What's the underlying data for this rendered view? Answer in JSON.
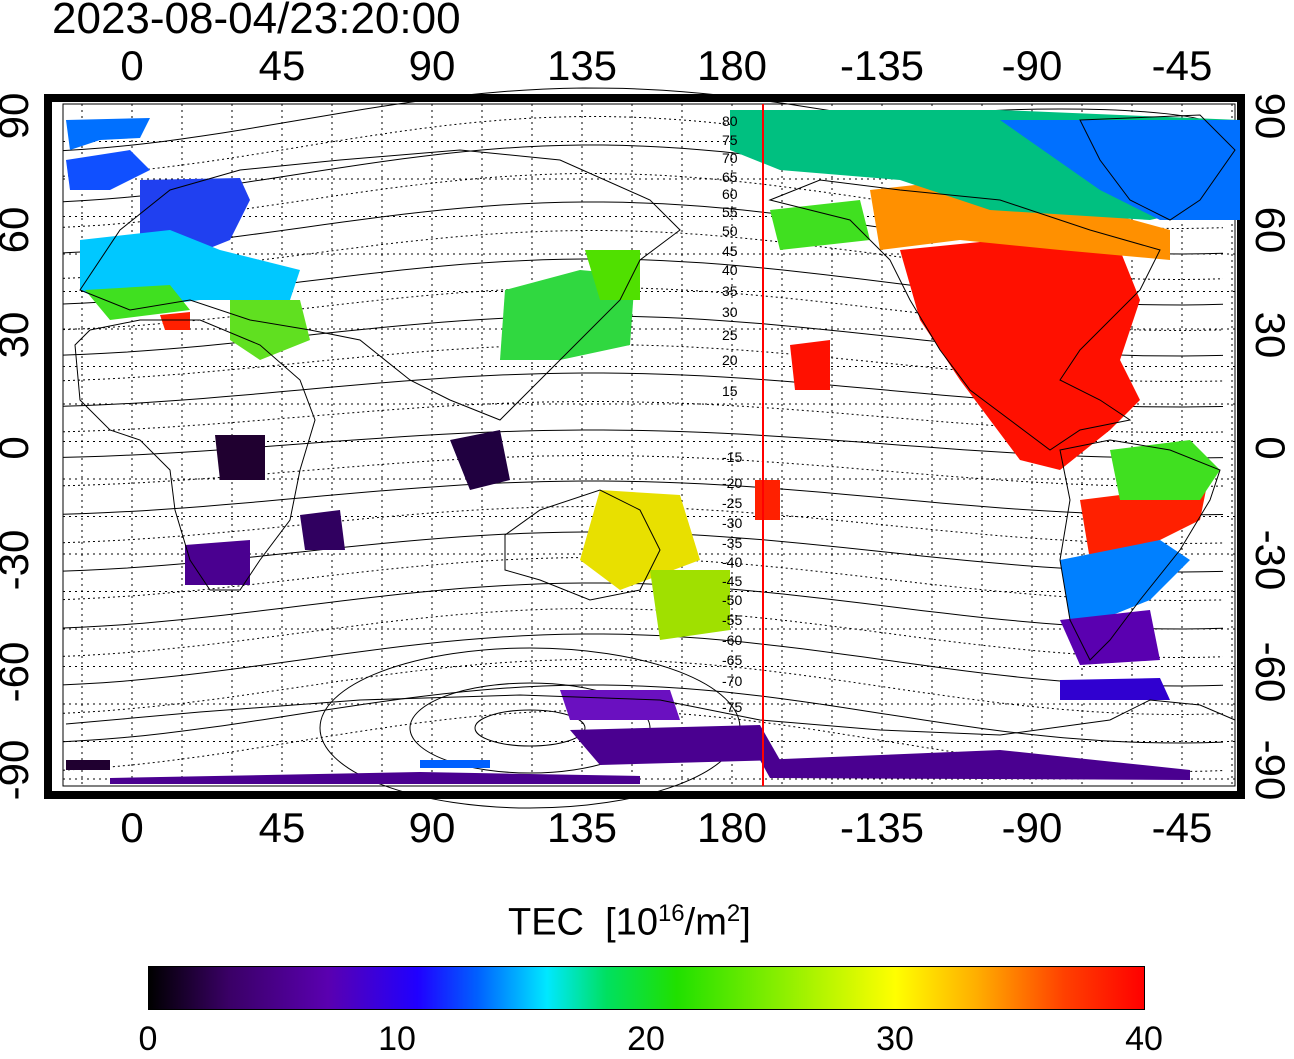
{
  "title": "2023-08-04/23:20:00",
  "map": {
    "lon_labels_top": [
      "0",
      "45",
      "90",
      "135",
      "180",
      "-135",
      "-90",
      "-45"
    ],
    "lon_labels_bottom": [
      "0",
      "45",
      "90",
      "135",
      "180",
      "-135",
      "-90",
      "-45"
    ],
    "lat_labels_left": [
      "90",
      "60",
      "30",
      "0",
      "-30",
      "-60",
      "-90"
    ],
    "lat_labels_right": [
      "90",
      "60",
      "30",
      "0",
      "-30",
      "-60",
      "-90"
    ],
    "magnetic_lat_labels": [
      "80",
      "75",
      "70",
      "65",
      "60",
      "55",
      "50",
      "45",
      "40",
      "35",
      "30",
      "25",
      "20",
      "15",
      "-15",
      "-20",
      "-25",
      "-30",
      "-35",
      "-40",
      "-45",
      "-50",
      "-55",
      "-60",
      "-65",
      "-70",
      "-75"
    ],
    "terminator_line_color": "#ff0000",
    "grid": "dotted"
  },
  "colorbar": {
    "title": "TEC",
    "unit_prefix": "[10",
    "unit_exp": "16",
    "unit_mid": "/m",
    "unit_exp2": "2",
    "unit_suffix": "]",
    "ticks": [
      "0",
      "10",
      "20",
      "30",
      "40"
    ],
    "range": [
      0,
      40
    ],
    "colormap": [
      "#000000",
      "#5a00b0",
      "#0000ff",
      "#00ffff",
      "#00e000",
      "#ffff00",
      "#ff0000"
    ]
  }
}
